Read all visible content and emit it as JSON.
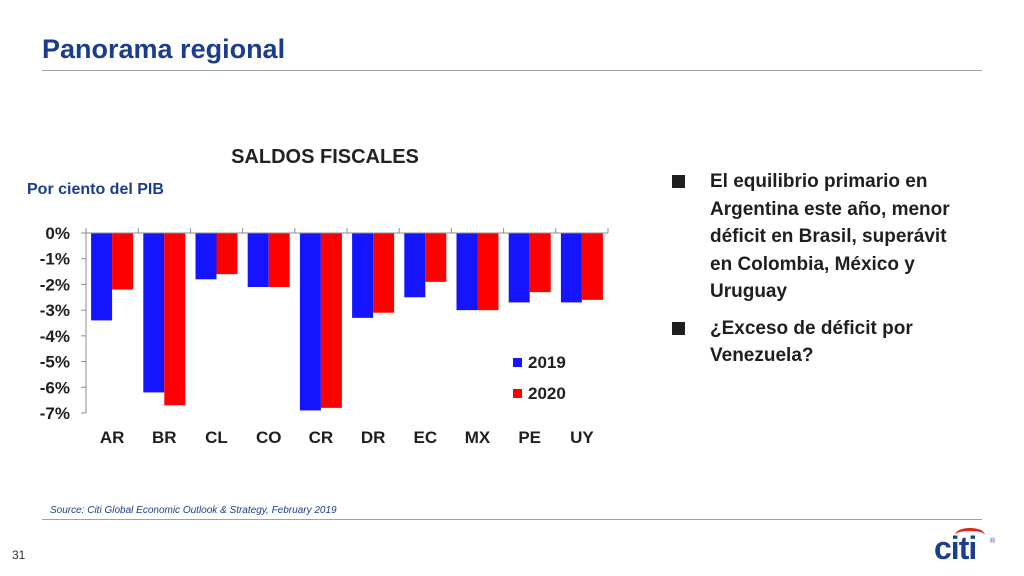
{
  "slide": {
    "title": "Panorama regional",
    "page_number": "31",
    "source": "Source: Citi Global Economic Outlook & Strategy, February 2019",
    "logo_text": "citi",
    "logo_mark": "®"
  },
  "bullets": [
    "El equilibrio primario en Argentina este año, menor déficit en Brasil, superávit en Colombia, México y Uruguay",
    "¿Exceso de déficit por Venezuela?"
  ],
  "colors": {
    "series_2019": "#1414ff",
    "series_2020": "#ff0000",
    "title_blue": "#1a3e8c",
    "accent_red": "#e0251b"
  },
  "chart_data": {
    "type": "bar",
    "title": "SALDOS FISCALES",
    "ylabel": "Por ciento del PIB",
    "xlabel": "",
    "categories": [
      "AR",
      "BR",
      "CL",
      "CO",
      "CR",
      "DR",
      "EC",
      "MX",
      "PE",
      "UY"
    ],
    "series": [
      {
        "name": "2019",
        "values": [
          -3.4,
          -6.2,
          -1.8,
          -2.1,
          -6.9,
          -3.3,
          -2.5,
          -3.0,
          -2.7,
          -2.7
        ]
      },
      {
        "name": "2020",
        "values": [
          -2.2,
          -6.7,
          -1.6,
          -2.1,
          -6.8,
          -3.1,
          -1.9,
          -3.0,
          -2.3,
          -2.6
        ]
      }
    ],
    "ylim": [
      -7,
      0
    ],
    "yticks": [
      0,
      -1,
      -2,
      -3,
      -4,
      -5,
      -6,
      -7
    ],
    "ytick_labels": [
      "0%",
      "-1%",
      "-2%",
      "-3%",
      "-4%",
      "-5%",
      "-6%",
      "-7%"
    ],
    "legend_position": "bottom-right",
    "grid": false
  }
}
